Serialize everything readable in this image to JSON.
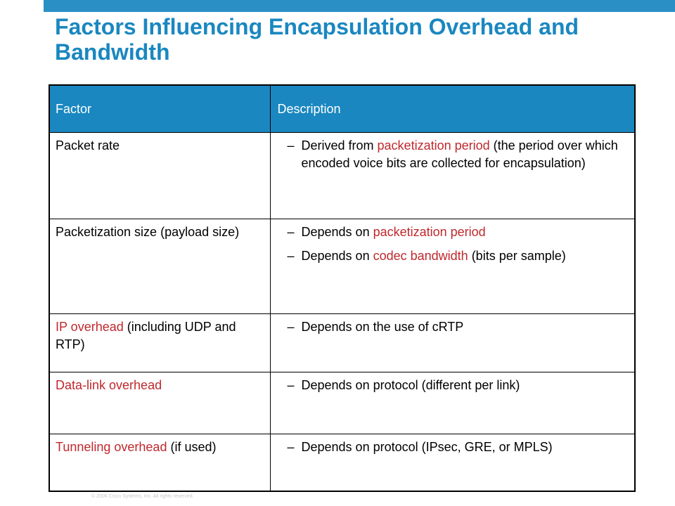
{
  "title": "Factors Influencing Encapsulation Overhead and Bandwidth",
  "table": {
    "headers": {
      "factor": "Factor",
      "description": "Description"
    },
    "dash": "–",
    "rows": [
      {
        "factor": [
          {
            "text": "Packet rate",
            "highlight": false
          }
        ],
        "bullets": [
          [
            {
              "text": "Derived from ",
              "highlight": false
            },
            {
              "text": "packetization period",
              "highlight": true
            },
            {
              "text": " (the period over which encoded voice bits are collected for encapsulation)",
              "highlight": false
            }
          ]
        ]
      },
      {
        "factor": [
          {
            "text": "Packetization size (payload size)",
            "highlight": false
          }
        ],
        "bullets": [
          [
            {
              "text": "Depends on ",
              "highlight": false
            },
            {
              "text": "packetization period",
              "highlight": true
            }
          ],
          [
            {
              "text": "Depends on ",
              "highlight": false
            },
            {
              "text": "codec bandwidth",
              "highlight": true
            },
            {
              "text": " (bits per sample)",
              "highlight": false
            }
          ]
        ]
      },
      {
        "factor": [
          {
            "text": "IP overhead",
            "highlight": true
          },
          {
            "text": " (including UDP and RTP)",
            "highlight": false
          }
        ],
        "bullets": [
          [
            {
              "text": "Depends on the use of cRTP",
              "highlight": false
            }
          ]
        ]
      },
      {
        "factor": [
          {
            "text": "Data-link overhead",
            "highlight": true
          }
        ],
        "bullets": [
          [
            {
              "text": "Depends on protocol (different per link)",
              "highlight": false
            }
          ]
        ]
      },
      {
        "factor": [
          {
            "text": "Tunneling overhead",
            "highlight": true
          },
          {
            "text": " (if used)",
            "highlight": false
          }
        ],
        "bullets": [
          [
            {
              "text": "Depends on protocol (IPsec, GRE, or MPLS)",
              "highlight": false
            }
          ]
        ]
      }
    ]
  },
  "footer": "© 2006 Cisco Systems, Inc. All rights reserved.",
  "colors": {
    "accent": "#1a87c0",
    "highlight": "#c0282d",
    "bar": "#2a8fc5"
  }
}
